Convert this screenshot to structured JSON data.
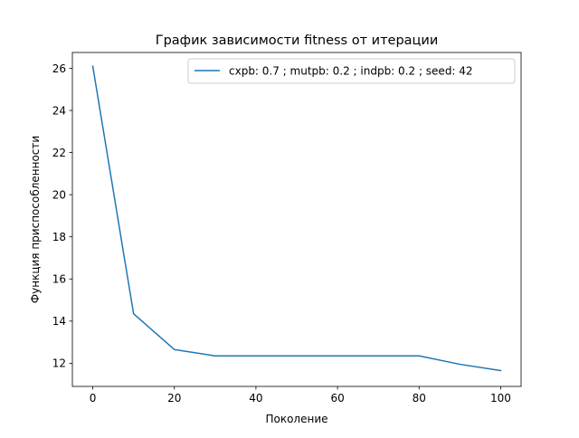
{
  "chart_data": {
    "type": "line",
    "title": "График зависимости fitness от итерации",
    "xlabel": "Поколение",
    "ylabel": "Функция приспособленности",
    "xlim": [
      -5,
      105
    ],
    "ylim": [
      10.9,
      26.75
    ],
    "xticks": [
      0,
      20,
      40,
      60,
      80,
      100
    ],
    "yticks": [
      12,
      14,
      16,
      18,
      20,
      22,
      24,
      26
    ],
    "grid": false,
    "legend_position": "top-right",
    "series": [
      {
        "name": "cxpb: 0.7 ; mutpb: 0.2 ; indpb: 0.2 ; seed: 42",
        "color": "#1f77b4",
        "x": [
          0,
          10,
          20,
          30,
          40,
          50,
          60,
          70,
          80,
          90,
          100
        ],
        "y": [
          26.1,
          14.35,
          12.65,
          12.35,
          12.35,
          12.35,
          12.35,
          12.35,
          12.35,
          11.95,
          11.65
        ]
      }
    ]
  }
}
